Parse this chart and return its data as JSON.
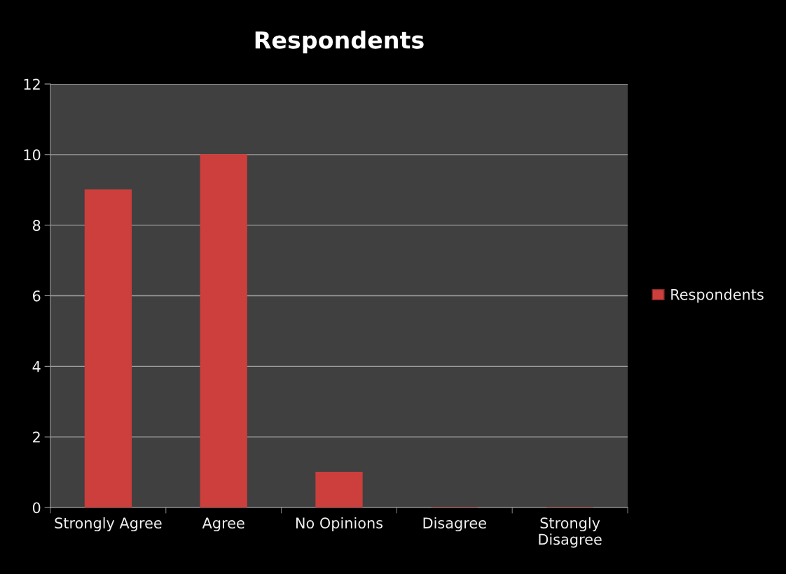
{
  "chart_data": {
    "type": "bar",
    "title": "Respondents",
    "categories": [
      "Strongly Agree",
      "Agree",
      "No Opinions",
      "Disagree",
      "Strongly Disagree"
    ],
    "series": [
      {
        "name": "Respondents",
        "color": "#cc3f3c",
        "values": [
          9,
          10,
          1,
          0,
          0
        ]
      }
    ],
    "ylim": [
      0,
      12
    ],
    "yticks": [
      0,
      2,
      4,
      6,
      8,
      10,
      12
    ],
    "grid": "y",
    "legend": "right"
  }
}
